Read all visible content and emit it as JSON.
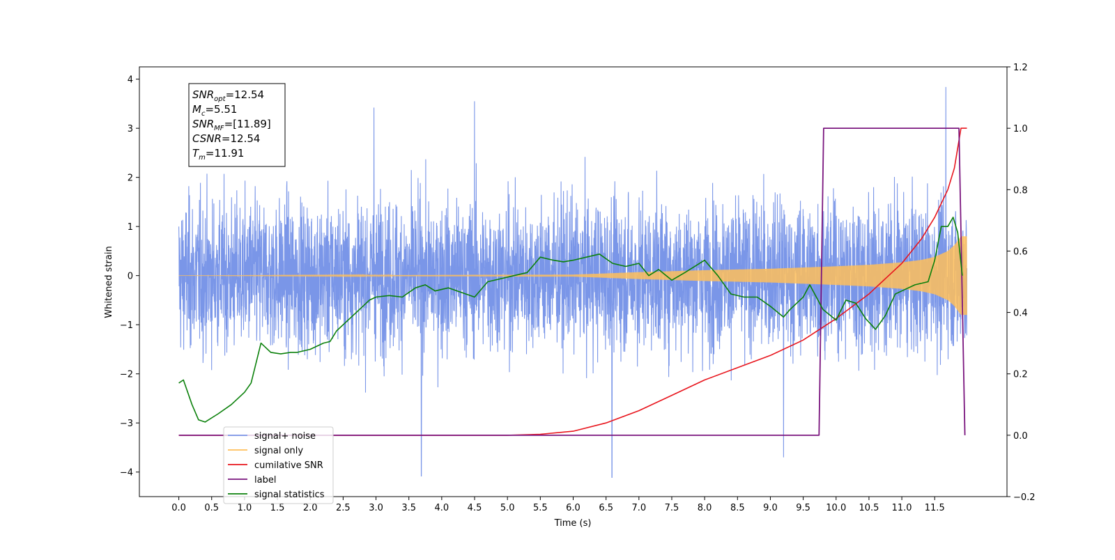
{
  "chart_data": {
    "type": "line",
    "xlabel": "Time (s)",
    "ylabel": "Whitened strain",
    "y2label": "",
    "xlim": [
      -0.6,
      12.6
    ],
    "ylim": [
      -4.5,
      4.25
    ],
    "y2lim": [
      -0.2,
      1.2
    ],
    "xticks": [
      "0.0",
      "0.5",
      "1.0",
      "1.5",
      "2.0",
      "2.5",
      "3.0",
      "3.5",
      "4.0",
      "4.5",
      "5.0",
      "5.5",
      "6.0",
      "6.5",
      "7.0",
      "7.5",
      "8.0",
      "8.5",
      "9.0",
      "9.5",
      "10.0",
      "10.5",
      "11.0",
      "11.5"
    ],
    "yticks": [
      "4",
      "3",
      "2",
      "1",
      "0",
      "−1",
      "−2",
      "−3",
      "−4"
    ],
    "y2ticks": [
      "1.2",
      "1.0",
      "0.8",
      "0.6",
      "0.4",
      "0.2",
      "0.0",
      "−0.2"
    ],
    "legend_position": "lower-left",
    "annotation_lines": [
      {
        "base": "SNR",
        "sub": "opt",
        "rest": "=12.54"
      },
      {
        "base": "M",
        "sub": "c",
        "rest": "=5.51"
      },
      {
        "base": "SNR",
        "sub": "MF",
        "rest": "=[11.89]"
      },
      {
        "base": "CSNR",
        "sub": "",
        "rest": "=12.54"
      },
      {
        "base": "T",
        "sub": "m",
        "rest": "=11.91"
      }
    ],
    "series": [
      {
        "name": "signal+ noise",
        "color": "#7a96e8",
        "axis": "left",
        "x_range": [
          0.0,
          11.99
        ],
        "typical_band": [
          -1.6,
          1.6
        ],
        "extremes": [
          [
            3.69,
            -4.08
          ],
          [
            6.59,
            -4.11
          ],
          [
            11.67,
            3.84
          ],
          [
            4.5,
            3.55
          ],
          [
            2.97,
            3.42
          ],
          [
            9.2,
            -3.7
          ]
        ]
      },
      {
        "name": "signal only",
        "color": "#ffbf5a",
        "axis": "left",
        "envelope": {
          "x": [
            0.0,
            6.0,
            7.0,
            8.0,
            9.0,
            10.0,
            10.5,
            11.0,
            11.3,
            11.5,
            11.7,
            11.8,
            11.9,
            11.99
          ],
          "amp": [
            0.0,
            0.02,
            0.07,
            0.11,
            0.14,
            0.19,
            0.22,
            0.27,
            0.32,
            0.38,
            0.5,
            0.62,
            0.8,
            0.8
          ]
        }
      },
      {
        "name": "cumilative SNR",
        "color": "#e8141c",
        "axis": "right",
        "x": [
          0.0,
          5.0,
          5.5,
          6.0,
          6.5,
          7.0,
          7.5,
          8.0,
          8.5,
          9.0,
          9.5,
          10.0,
          10.5,
          11.0,
          11.3,
          11.5,
          11.7,
          11.8,
          11.9,
          11.99
        ],
        "y": [
          0.0,
          0.0,
          0.003,
          0.013,
          0.04,
          0.08,
          0.13,
          0.18,
          0.22,
          0.26,
          0.31,
          0.38,
          0.46,
          0.56,
          0.64,
          0.71,
          0.8,
          0.87,
          1.0,
          1.0
        ]
      },
      {
        "name": "label",
        "color": "#7a157e",
        "axis": "right",
        "x": [
          0.0,
          9.74,
          9.81,
          11.87,
          11.96
        ],
        "y": [
          0.0,
          0.0,
          1.0,
          1.0,
          0.0
        ]
      },
      {
        "name": "signal statistics",
        "color": "#0a800a",
        "axis": "right",
        "x": [
          0.0,
          0.07,
          0.2,
          0.3,
          0.4,
          0.6,
          0.8,
          1.0,
          1.1,
          1.25,
          1.4,
          1.55,
          1.7,
          1.8,
          2.0,
          2.2,
          2.3,
          2.4,
          2.55,
          2.75,
          2.9,
          3.0,
          3.2,
          3.4,
          3.6,
          3.75,
          3.9,
          4.1,
          4.3,
          4.5,
          4.7,
          4.9,
          5.1,
          5.3,
          5.5,
          5.7,
          5.85,
          6.0,
          6.2,
          6.4,
          6.6,
          6.8,
          7.0,
          7.15,
          7.3,
          7.5,
          7.7,
          8.0,
          8.2,
          8.4,
          8.6,
          8.8,
          9.0,
          9.2,
          9.3,
          9.5,
          9.6,
          9.8,
          10.0,
          10.15,
          10.3,
          10.45,
          10.6,
          10.75,
          10.9,
          11.0,
          11.2,
          11.4,
          11.5,
          11.6,
          11.7,
          11.78,
          11.85,
          11.92
        ],
        "y": [
          0.17,
          0.18,
          0.1,
          0.05,
          0.043,
          0.07,
          0.1,
          0.14,
          0.17,
          0.3,
          0.27,
          0.265,
          0.27,
          0.27,
          0.28,
          0.3,
          0.305,
          0.34,
          0.37,
          0.41,
          0.44,
          0.45,
          0.455,
          0.45,
          0.48,
          0.49,
          0.47,
          0.48,
          0.465,
          0.45,
          0.5,
          0.51,
          0.52,
          0.53,
          0.58,
          0.57,
          0.565,
          0.57,
          0.58,
          0.59,
          0.56,
          0.55,
          0.56,
          0.52,
          0.54,
          0.505,
          0.53,
          0.57,
          0.52,
          0.46,
          0.45,
          0.45,
          0.42,
          0.385,
          0.41,
          0.45,
          0.49,
          0.41,
          0.375,
          0.44,
          0.43,
          0.38,
          0.345,
          0.39,
          0.46,
          0.47,
          0.49,
          0.5,
          0.57,
          0.68,
          0.68,
          0.71,
          0.66,
          0.52
        ]
      }
    ]
  }
}
